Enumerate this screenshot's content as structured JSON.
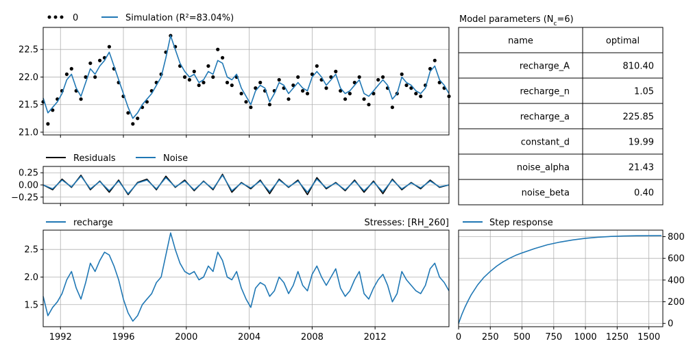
{
  "colors": {
    "simulation": "#1f77b4",
    "observed": "#000000",
    "residuals": "#000000",
    "noise": "#1f77b4",
    "recharge": "#1f77b4",
    "step": "#1f77b4",
    "grid": "#b0b0b0"
  },
  "chart_data": [
    {
      "id": "head",
      "type": "line",
      "legend": [
        {
          "label": "0",
          "marker": "dots",
          "color": "#000000"
        },
        {
          "label": "Simulation (R²=83.04%)",
          "color": "#1f77b4"
        }
      ],
      "x": [
        1990.9,
        1991.2,
        1991.5,
        1991.8,
        1992.1,
        1992.4,
        1992.7,
        1993.0,
        1993.3,
        1993.6,
        1993.9,
        1994.2,
        1994.5,
        1994.8,
        1995.1,
        1995.4,
        1995.7,
        1996.0,
        1996.3,
        1996.6,
        1996.9,
        1997.2,
        1997.5,
        1997.8,
        1998.1,
        1998.4,
        1998.7,
        1999.0,
        1999.3,
        1999.6,
        1999.9,
        2000.2,
        2000.5,
        2000.8,
        2001.1,
        2001.4,
        2001.7,
        2002.0,
        2002.3,
        2002.6,
        2002.9,
        2003.2,
        2003.5,
        2003.8,
        2004.1,
        2004.4,
        2004.7,
        2005.0,
        2005.3,
        2005.6,
        2005.9,
        2006.2,
        2006.5,
        2006.8,
        2007.1,
        2007.4,
        2007.7,
        2008.0,
        2008.3,
        2008.6,
        2008.9,
        2009.2,
        2009.5,
        2009.8,
        2010.1,
        2010.4,
        2010.7,
        2011.0,
        2011.3,
        2011.6,
        2011.9,
        2012.2,
        2012.5,
        2012.8,
        2013.1,
        2013.4,
        2013.7,
        2014.0,
        2014.3,
        2014.6,
        2014.9,
        2015.2,
        2015.5,
        2015.8,
        2016.1,
        2016.4,
        2016.7
      ],
      "series": [
        {
          "name": "Simulation (R²=83.04%)",
          "values": [
            21.62,
            21.35,
            21.45,
            21.55,
            21.7,
            21.95,
            22.05,
            21.8,
            21.65,
            21.9,
            22.15,
            22.05,
            22.2,
            22.3,
            22.45,
            22.2,
            21.95,
            21.7,
            21.45,
            21.25,
            21.35,
            21.5,
            21.6,
            21.7,
            21.85,
            22.0,
            22.35,
            22.75,
            22.5,
            22.25,
            22.1,
            22.0,
            22.05,
            21.9,
            21.95,
            22.1,
            22.05,
            22.3,
            22.25,
            22.0,
            21.95,
            22.05,
            21.8,
            21.65,
            21.5,
            21.75,
            21.85,
            21.8,
            21.55,
            21.7,
            21.9,
            21.85,
            21.7,
            21.8,
            21.9,
            21.8,
            21.75,
            22.0,
            22.1,
            22.0,
            21.85,
            21.95,
            22.05,
            21.8,
            21.7,
            21.75,
            21.85,
            21.95,
            21.7,
            21.65,
            21.75,
            21.85,
            21.95,
            21.85,
            21.6,
            21.7,
            22.0,
            21.9,
            21.85,
            21.75,
            21.7,
            21.8,
            22.1,
            22.2,
            21.95,
            21.85,
            21.7
          ]
        },
        {
          "name": "0",
          "values": [
            21.55,
            21.15,
            21.4,
            21.6,
            21.75,
            22.05,
            22.15,
            21.75,
            21.6,
            22.0,
            22.25,
            22.0,
            22.3,
            22.35,
            22.55,
            22.15,
            21.9,
            21.65,
            21.35,
            21.15,
            21.25,
            21.45,
            21.55,
            21.75,
            21.9,
            22.05,
            22.45,
            22.75,
            22.55,
            22.2,
            22.0,
            21.95,
            22.1,
            21.85,
            21.9,
            22.2,
            22.0,
            22.5,
            22.35,
            21.9,
            21.85,
            22.0,
            21.7,
            21.55,
            21.45,
            21.8,
            21.9,
            21.75,
            21.5,
            21.75,
            21.95,
            21.8,
            21.6,
            21.85,
            22.0,
            21.75,
            21.7,
            22.05,
            22.2,
            21.95,
            21.8,
            22.0,
            22.1,
            21.75,
            21.6,
            21.7,
            21.9,
            22.0,
            21.6,
            21.5,
            21.7,
            21.95,
            22.0,
            21.8,
            21.45,
            21.7,
            22.05,
            21.85,
            21.8,
            21.7,
            21.65,
            21.85,
            22.15,
            22.3,
            21.9,
            21.8,
            21.65
          ]
        }
      ],
      "xlim": [
        1990.9,
        2016.7
      ],
      "ylim": [
        20.95,
        22.9
      ],
      "yticks": [
        "21.0",
        "21.5",
        "22.0",
        "22.5"
      ],
      "grid": true
    },
    {
      "id": "residuals",
      "type": "line",
      "legend": [
        {
          "label": "Residuals",
          "color": "#000000"
        },
        {
          "label": "Noise",
          "color": "#1f77b4"
        }
      ],
      "x": [
        1990.9,
        1991.5,
        1992.1,
        1992.7,
        1993.3,
        1993.9,
        1994.5,
        1995.1,
        1995.7,
        1996.3,
        1996.9,
        1997.5,
        1998.1,
        1998.7,
        1999.3,
        1999.9,
        2000.5,
        2001.1,
        2001.7,
        2002.3,
        2002.9,
        2003.5,
        2004.1,
        2004.7,
        2005.3,
        2005.9,
        2006.5,
        2007.1,
        2007.7,
        2008.3,
        2008.9,
        2009.5,
        2010.1,
        2010.7,
        2011.3,
        2011.9,
        2012.5,
        2013.1,
        2013.7,
        2014.3,
        2014.9,
        2015.5,
        2016.1,
        2016.7
      ],
      "series": [
        {
          "name": "Residuals",
          "values": [
            0.0,
            -0.1,
            0.12,
            -0.05,
            0.2,
            -0.1,
            0.08,
            -0.15,
            0.1,
            -0.2,
            0.05,
            0.12,
            -0.1,
            0.18,
            -0.05,
            0.1,
            -0.12,
            0.08,
            -0.1,
            0.22,
            -0.15,
            0.05,
            -0.08,
            0.1,
            -0.18,
            0.12,
            -0.05,
            0.1,
            -0.2,
            0.15,
            -0.08,
            0.05,
            -0.12,
            0.1,
            -0.15,
            0.08,
            -0.18,
            0.12,
            -0.1,
            0.05,
            -0.08,
            0.1,
            -0.05,
            0.0
          ]
        },
        {
          "name": "Noise",
          "values": [
            0.0,
            -0.08,
            0.1,
            -0.04,
            0.18,
            -0.08,
            0.07,
            -0.12,
            0.08,
            -0.18,
            0.04,
            0.1,
            -0.08,
            0.15,
            -0.04,
            0.08,
            -0.1,
            0.07,
            -0.08,
            0.2,
            -0.12,
            0.04,
            -0.06,
            0.08,
            -0.14,
            0.1,
            -0.04,
            0.08,
            -0.15,
            0.12,
            -0.06,
            0.04,
            -0.1,
            0.08,
            -0.12,
            0.06,
            -0.14,
            0.1,
            -0.08,
            0.04,
            -0.06,
            0.08,
            -0.04,
            0.0
          ]
        }
      ],
      "xlim": [
        1990.9,
        2016.7
      ],
      "ylim": [
        -0.38,
        0.38
      ],
      "yticks": [
        "0.25",
        "0.00",
        "−0.25"
      ],
      "grid": true
    },
    {
      "id": "stress",
      "type": "line",
      "title": "Stresses: [RH_260]",
      "legend": [
        {
          "label": "recharge",
          "color": "#1f77b4"
        }
      ],
      "x": [
        1990.9,
        1991.2,
        1991.5,
        1991.8,
        1992.1,
        1992.4,
        1992.7,
        1993.0,
        1993.3,
        1993.6,
        1993.9,
        1994.2,
        1994.5,
        1994.8,
        1995.1,
        1995.4,
        1995.7,
        1996.0,
        1996.3,
        1996.6,
        1996.9,
        1997.2,
        1997.5,
        1997.8,
        1998.1,
        1998.4,
        1998.7,
        1999.0,
        1999.3,
        1999.6,
        1999.9,
        2000.2,
        2000.5,
        2000.8,
        2001.1,
        2001.4,
        2001.7,
        2002.0,
        2002.3,
        2002.6,
        2002.9,
        2003.2,
        2003.5,
        2003.8,
        2004.1,
        2004.4,
        2004.7,
        2005.0,
        2005.3,
        2005.6,
        2005.9,
        2006.2,
        2006.5,
        2006.8,
        2007.1,
        2007.4,
        2007.7,
        2008.0,
        2008.3,
        2008.6,
        2008.9,
        2009.2,
        2009.5,
        2009.8,
        2010.1,
        2010.4,
        2010.7,
        2011.0,
        2011.3,
        2011.6,
        2011.9,
        2012.2,
        2012.5,
        2012.8,
        2013.1,
        2013.4,
        2013.7,
        2014.0,
        2014.3,
        2014.6,
        2014.9,
        2015.2,
        2015.5,
        2015.8,
        2016.1,
        2016.4,
        2016.7
      ],
      "series": [
        {
          "name": "recharge",
          "values": [
            1.65,
            1.3,
            1.45,
            1.55,
            1.7,
            1.95,
            2.1,
            1.8,
            1.6,
            1.9,
            2.25,
            2.1,
            2.3,
            2.45,
            2.4,
            2.2,
            1.95,
            1.6,
            1.35,
            1.2,
            1.3,
            1.5,
            1.6,
            1.7,
            1.9,
            2.0,
            2.4,
            2.8,
            2.5,
            2.25,
            2.1,
            2.05,
            2.1,
            1.95,
            2.0,
            2.2,
            2.1,
            2.45,
            2.3,
            2.0,
            1.95,
            2.1,
            1.8,
            1.6,
            1.45,
            1.8,
            1.9,
            1.85,
            1.65,
            1.75,
            2.0,
            1.9,
            1.7,
            1.85,
            2.1,
            1.85,
            1.75,
            2.05,
            2.2,
            2.0,
            1.85,
            2.0,
            2.15,
            1.8,
            1.65,
            1.75,
            1.95,
            2.1,
            1.7,
            1.6,
            1.8,
            1.95,
            2.05,
            1.85,
            1.55,
            1.7,
            2.1,
            1.95,
            1.85,
            1.75,
            1.7,
            1.85,
            2.15,
            2.25,
            2.0,
            1.9,
            1.75
          ]
        }
      ],
      "xlim": [
        1990.9,
        2016.7
      ],
      "ylim": [
        1.1,
        2.85
      ],
      "yticks": [
        "1.5",
        "2.0",
        "2.5"
      ],
      "xticks": [
        "1992",
        "1996",
        "2000",
        "2004",
        "2008",
        "2012"
      ],
      "grid": true
    },
    {
      "id": "step",
      "type": "line",
      "legend": [
        {
          "label": "Step response",
          "color": "#1f77b4"
        }
      ],
      "x": [
        0,
        25,
        50,
        75,
        100,
        150,
        200,
        250,
        300,
        350,
        400,
        450,
        500,
        600,
        700,
        800,
        900,
        1000,
        1100,
        1200,
        1300,
        1400,
        1500,
        1600
      ],
      "series": [
        {
          "name": "Step response",
          "values": [
            0,
            80,
            150,
            210,
            265,
            355,
            425,
            480,
            528,
            568,
            600,
            628,
            650,
            690,
            725,
            750,
            770,
            785,
            795,
            802,
            806,
            808,
            809,
            810
          ]
        }
      ],
      "xlim": [
        0,
        1610
      ],
      "ylim": [
        -30,
        860
      ],
      "yticks": [
        "0",
        "200",
        "400",
        "600",
        "800"
      ],
      "xticks": [
        "0",
        "250",
        "500",
        "750",
        "1000",
        "1250",
        "1500"
      ],
      "grid": true
    }
  ],
  "table": {
    "title": "Model parameters (N",
    "title_sub": "c",
    "title_tail": "=6)",
    "headers": [
      "name",
      "optimal"
    ],
    "rows": [
      [
        "recharge_A",
        "810.40"
      ],
      [
        "recharge_n",
        "1.05"
      ],
      [
        "recharge_a",
        "225.85"
      ],
      [
        "constant_d",
        "19.99"
      ],
      [
        "noise_alpha",
        "21.43"
      ],
      [
        "noise_beta",
        "0.40"
      ]
    ]
  }
}
